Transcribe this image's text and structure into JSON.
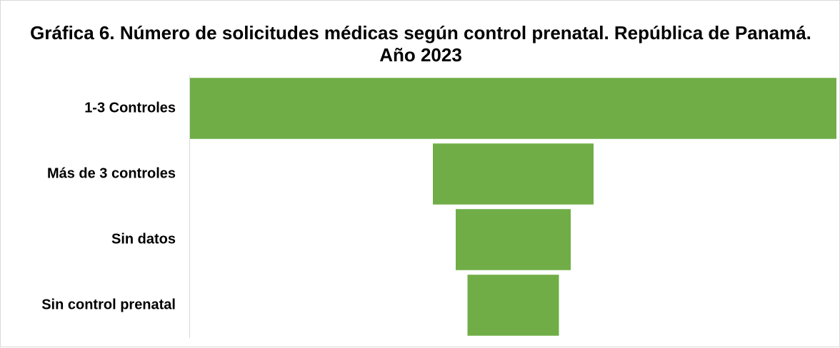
{
  "chart_data": {
    "type": "funnel",
    "title": "Gráfica 6. Número de solicitudes médicas según control prenatal. República de Panamá. Año 2023",
    "categories": [
      "1-3 Controles",
      "Más de  3 controles",
      "Sin datos",
      "Sin control prenatal"
    ],
    "values": [
      905,
      225,
      161,
      128
    ],
    "color": "#70ad47"
  }
}
